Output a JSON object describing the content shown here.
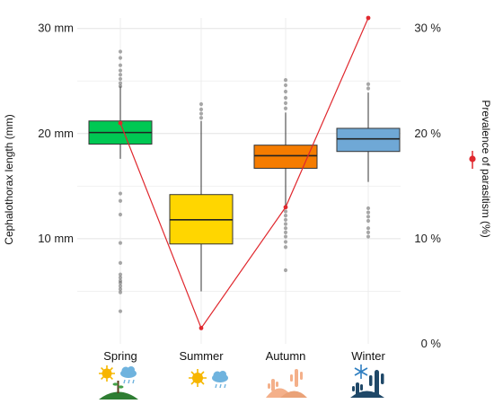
{
  "chart_data": {
    "type": "boxplot",
    "categories": [
      "Spring",
      "Summer",
      "Autumn",
      "Winter"
    ],
    "ylabel_left": "Cephalothorax length (mm)",
    "ylabel_right": "Prevalence of parasitism (%)",
    "ylim_left": [
      0,
      31
    ],
    "ylim_right": [
      0,
      31
    ],
    "left_ticks": [
      {
        "value": 10,
        "label": "10 mm"
      },
      {
        "value": 20,
        "label": "20 mm"
      },
      {
        "value": 30,
        "label": "30 mm"
      }
    ],
    "right_ticks": [
      {
        "value": 0,
        "label": "0 %"
      },
      {
        "value": 10,
        "label": "10 %"
      },
      {
        "value": 20,
        "label": "20 %"
      },
      {
        "value": 30,
        "label": "30 %"
      }
    ],
    "grid": true,
    "boxes": [
      {
        "category": "Spring",
        "color": "#00c853",
        "whisker_low": 17.6,
        "q1": 19.0,
        "median": 20.1,
        "q3": 21.2,
        "whisker_high": 24.5,
        "outliers": [
          24.5,
          24.8,
          25.2,
          25.6,
          26.0,
          26.5,
          27.2,
          27.8,
          14.3,
          13.6,
          12.3,
          9.6,
          7.7,
          6.6,
          6.3,
          6.0,
          5.8,
          5.5,
          5.2,
          4.9,
          3.1
        ]
      },
      {
        "category": "Summer",
        "color": "#ffd600",
        "whisker_low": 5.0,
        "q1": 9.5,
        "median": 11.8,
        "q3": 14.2,
        "whisker_high": 21.2,
        "outliers": [
          21.5,
          21.9,
          22.3,
          22.8
        ]
      },
      {
        "category": "Autumn",
        "color": "#f57c00",
        "whisker_low": 12.9,
        "q1": 16.7,
        "median": 17.9,
        "q3": 18.9,
        "whisker_high": 22.0,
        "outliers": [
          22.4,
          22.9,
          23.4,
          24.0,
          24.6,
          25.1,
          12.6,
          12.2,
          11.8,
          11.4,
          11.0,
          10.6,
          10.2,
          9.7,
          9.2,
          7.0
        ]
      },
      {
        "category": "Winter",
        "color": "#6fa8d6",
        "whisker_low": 15.4,
        "q1": 18.3,
        "median": 19.5,
        "q3": 20.5,
        "whisker_high": 23.9,
        "outliers": [
          24.3,
          24.7,
          12.9,
          12.5,
          12.1,
          11.7,
          11.0,
          10.6,
          10.2
        ]
      }
    ],
    "prevalence_series": {
      "name": "Prevalence of parasitism (%)",
      "color": "#e0282e",
      "values": [
        21.0,
        1.5,
        13.0,
        31.0
      ]
    }
  },
  "icons": [
    {
      "category": "Spring",
      "names": [
        "sun-icon",
        "rain-cloud-icon",
        "green-hill-plant-icon"
      ]
    },
    {
      "category": "Summer",
      "names": [
        "sun-icon",
        "rain-cloud-icon"
      ]
    },
    {
      "category": "Autumn",
      "names": [
        "desert-dunes-cactus-icon"
      ]
    },
    {
      "category": "Winter",
      "names": [
        "snowflake-icon",
        "dark-cactus-icon"
      ]
    }
  ]
}
